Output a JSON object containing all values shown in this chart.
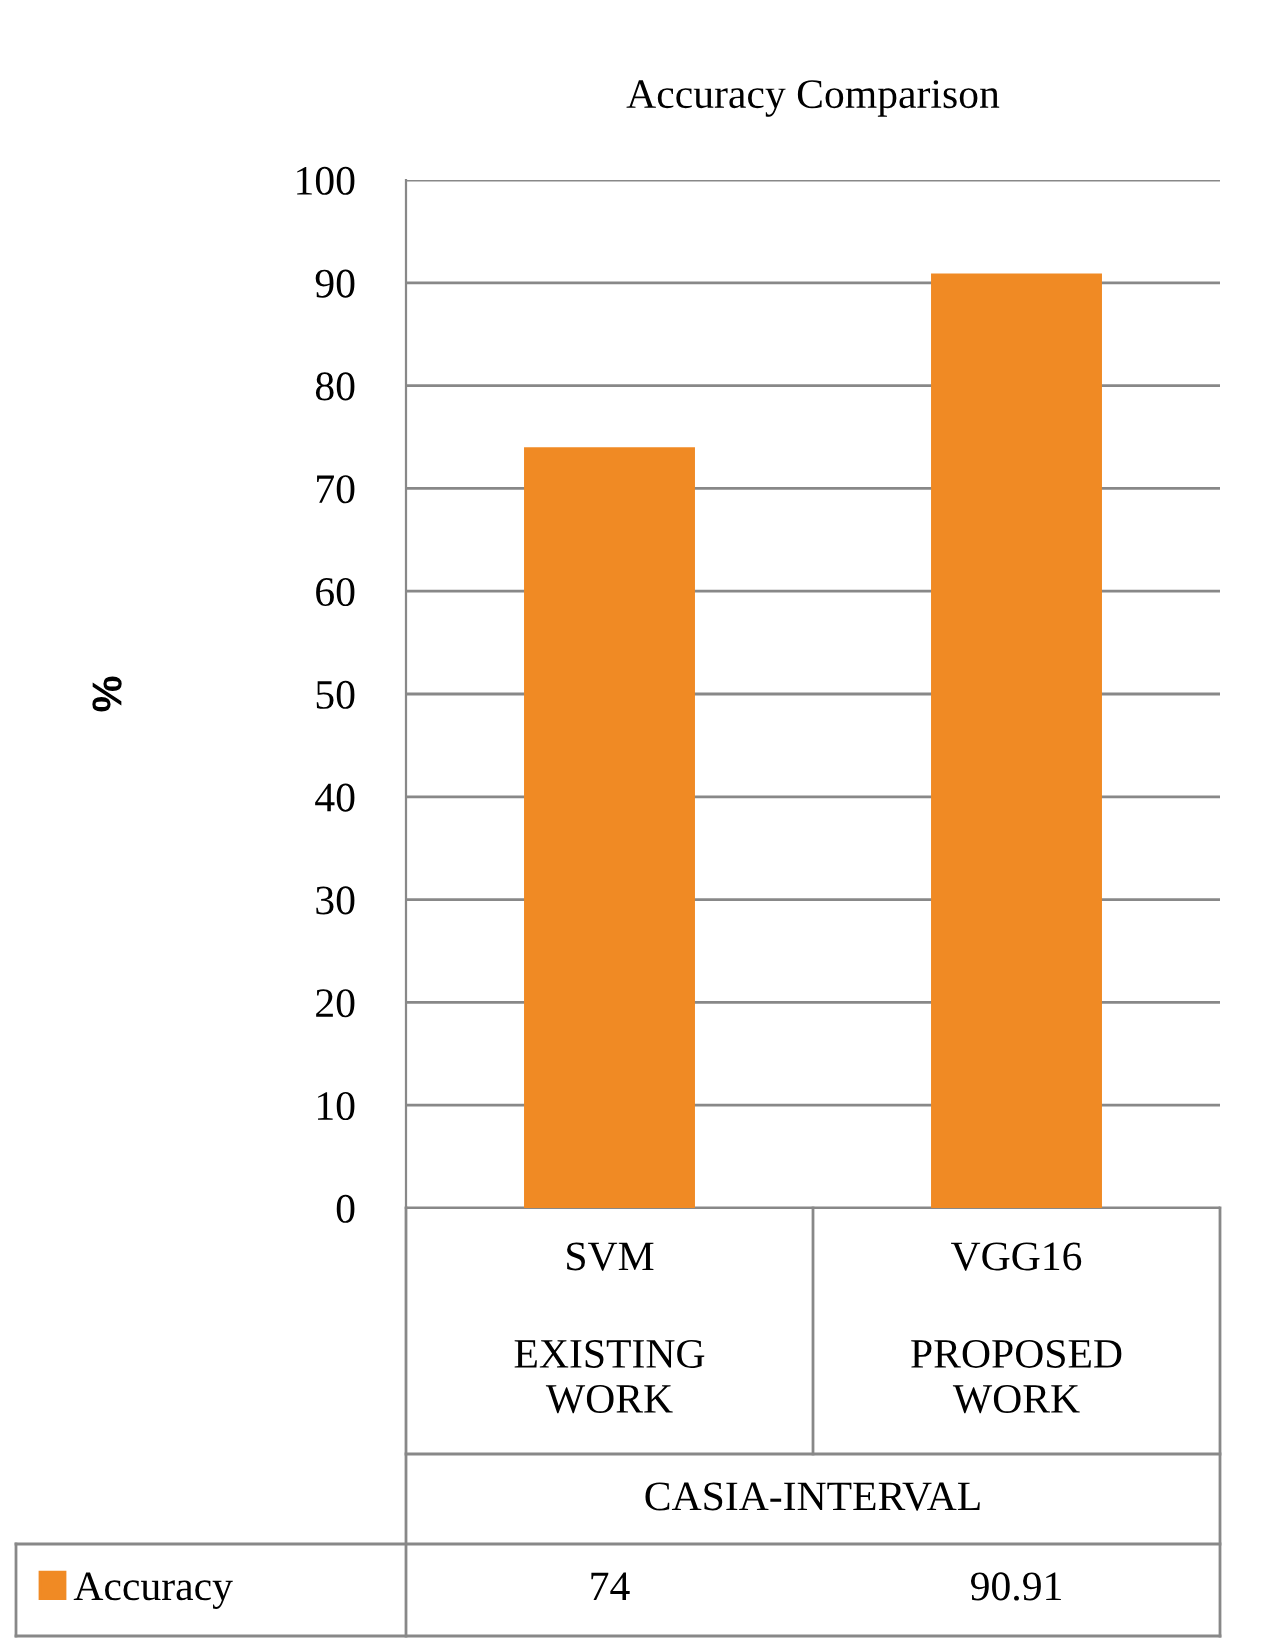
{
  "chart_data": {
    "type": "bar",
    "title": "Accuracy Comparison",
    "ylabel": "%",
    "annotations": [
      "CASIA-INTERVAL"
    ],
    "categories": [
      "SVM\nEXISTING WORK",
      "VGG16\nPROPOSED WORK"
    ],
    "series": [
      {
        "name": "Accuracy",
        "color": "#f08a24",
        "values": [
          74,
          90.91
        ]
      }
    ],
    "ylim": [
      0,
      100
    ],
    "yticks": [
      0,
      10,
      20,
      30,
      40,
      50,
      60,
      70,
      80,
      90,
      100
    ],
    "grid": "y",
    "legend": "bottom",
    "data_labels": true
  }
}
